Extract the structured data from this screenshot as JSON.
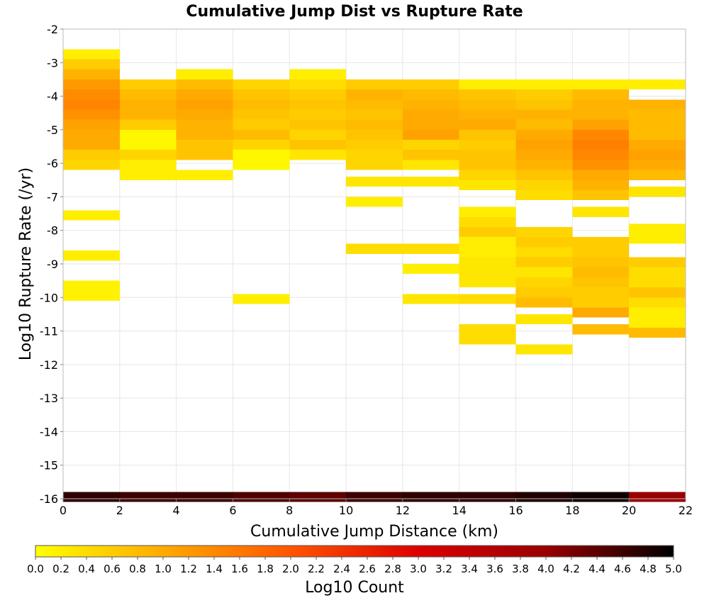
{
  "chart_data": {
    "type": "heatmap",
    "title": "Cumulative Jump Dist vs Rupture Rate",
    "xlabel": "Cumulative Jump Distance (km)",
    "ylabel": "Log10 Rupture Rate (/yr)",
    "xlim": [
      0,
      22
    ],
    "ylim": [
      -16,
      -2
    ],
    "x_ticks": [
      "0",
      "2",
      "4",
      "6",
      "8",
      "10",
      "12",
      "14",
      "16",
      "18",
      "20",
      "22"
    ],
    "y_ticks": [
      "-2",
      "-3",
      "-4",
      "-5",
      "-6",
      "-7",
      "-8",
      "-9",
      "-10",
      "-11",
      "-12",
      "-13",
      "-14",
      "-15",
      "-16"
    ],
    "x_bin_width": 2,
    "y_bin_height": 0.3,
    "colorbar": {
      "label": "Log10 Count",
      "min": 0.0,
      "max": 5.0,
      "ticks": [
        "0.0",
        "0.2",
        "0.4",
        "0.6",
        "0.8",
        "1.0",
        "1.2",
        "1.4",
        "1.6",
        "1.8",
        "2.0",
        "2.2",
        "2.4",
        "2.6",
        "2.8",
        "3.0",
        "3.2",
        "3.4",
        "3.6",
        "3.8",
        "4.0",
        "4.2",
        "4.4",
        "4.6",
        "4.8",
        "5.0"
      ],
      "colors": [
        "#ffff00",
        "#ffaa00",
        "#ff5500",
        "#dd0000",
        "#990000",
        "#000000"
      ]
    },
    "cells": [
      {
        "x": 0,
        "y": -2.75,
        "v": 0.2
      },
      {
        "x": 0,
        "y": -3.05,
        "v": 0.6
      },
      {
        "x": 0,
        "y": -3.35,
        "v": 0.9
      },
      {
        "x": 0,
        "y": -3.65,
        "v": 1.2
      },
      {
        "x": 0,
        "y": -3.95,
        "v": 1.35
      },
      {
        "x": 0,
        "y": -4.25,
        "v": 1.45
      },
      {
        "x": 0,
        "y": -4.55,
        "v": 1.3
      },
      {
        "x": 0,
        "y": -4.85,
        "v": 1.1
      },
      {
        "x": 0,
        "y": -5.15,
        "v": 1.0
      },
      {
        "x": 0,
        "y": -5.45,
        "v": 1.0
      },
      {
        "x": 0,
        "y": -5.75,
        "v": 0.6
      },
      {
        "x": 0,
        "y": -6.05,
        "v": 0.5
      },
      {
        "x": 0,
        "y": -7.55,
        "v": 0.2
      },
      {
        "x": 0,
        "y": -8.75,
        "v": 0.2
      },
      {
        "x": 0,
        "y": -9.65,
        "v": 0.15
      },
      {
        "x": 0,
        "y": -9.95,
        "v": 0.15
      },
      {
        "x": 0,
        "y": -15.95,
        "v": 4.7
      },
      {
        "x": 2,
        "y": -3.65,
        "v": 0.6
      },
      {
        "x": 2,
        "y": -3.95,
        "v": 0.8
      },
      {
        "x": 2,
        "y": -4.25,
        "v": 0.9
      },
      {
        "x": 2,
        "y": -4.55,
        "v": 0.9
      },
      {
        "x": 2,
        "y": -4.85,
        "v": 0.6
      },
      {
        "x": 2,
        "y": -5.15,
        "v": 0.1
      },
      {
        "x": 2,
        "y": -5.45,
        "v": 0.1
      },
      {
        "x": 2,
        "y": -5.75,
        "v": 0.5
      },
      {
        "x": 2,
        "y": -6.05,
        "v": 0.2
      },
      {
        "x": 2,
        "y": -6.35,
        "v": 0.2
      },
      {
        "x": 2,
        "y": -15.95,
        "v": 4.6
      },
      {
        "x": 4,
        "y": -3.35,
        "v": 0.2
      },
      {
        "x": 4,
        "y": -3.65,
        "v": 0.8
      },
      {
        "x": 4,
        "y": -3.95,
        "v": 1.0
      },
      {
        "x": 4,
        "y": -4.25,
        "v": 1.1
      },
      {
        "x": 4,
        "y": -4.55,
        "v": 1.0
      },
      {
        "x": 4,
        "y": -4.85,
        "v": 0.9
      },
      {
        "x": 4,
        "y": -5.15,
        "v": 0.9
      },
      {
        "x": 4,
        "y": -5.45,
        "v": 0.7
      },
      {
        "x": 4,
        "y": -5.75,
        "v": 0.7
      },
      {
        "x": 4,
        "y": -6.35,
        "v": 0.2
      },
      {
        "x": 4,
        "y": -15.95,
        "v": 4.6
      },
      {
        "x": 6,
        "y": -3.65,
        "v": 0.5
      },
      {
        "x": 6,
        "y": -3.95,
        "v": 0.7
      },
      {
        "x": 6,
        "y": -4.25,
        "v": 0.8
      },
      {
        "x": 6,
        "y": -4.55,
        "v": 0.7
      },
      {
        "x": 6,
        "y": -4.85,
        "v": 0.6
      },
      {
        "x": 6,
        "y": -5.15,
        "v": 0.8
      },
      {
        "x": 6,
        "y": -5.45,
        "v": 0.5
      },
      {
        "x": 6,
        "y": -5.75,
        "v": 0.1
      },
      {
        "x": 6,
        "y": -6.05,
        "v": 0.1
      },
      {
        "x": 6,
        "y": -10.05,
        "v": 0.2
      },
      {
        "x": 6,
        "y": -15.95,
        "v": 4.5
      },
      {
        "x": 8,
        "y": -3.35,
        "v": 0.2
      },
      {
        "x": 8,
        "y": -3.65,
        "v": 0.4
      },
      {
        "x": 8,
        "y": -3.95,
        "v": 0.6
      },
      {
        "x": 8,
        "y": -4.25,
        "v": 0.7
      },
      {
        "x": 8,
        "y": -4.55,
        "v": 0.6
      },
      {
        "x": 8,
        "y": -4.85,
        "v": 0.7
      },
      {
        "x": 8,
        "y": -5.15,
        "v": 0.5
      },
      {
        "x": 8,
        "y": -5.45,
        "v": 0.7
      },
      {
        "x": 8,
        "y": -5.75,
        "v": 0.3
      },
      {
        "x": 8,
        "y": -15.95,
        "v": 4.4
      },
      {
        "x": 10,
        "y": -3.65,
        "v": 0.6
      },
      {
        "x": 10,
        "y": -3.95,
        "v": 0.9
      },
      {
        "x": 10,
        "y": -4.25,
        "v": 0.8
      },
      {
        "x": 10,
        "y": -4.55,
        "v": 0.7
      },
      {
        "x": 10,
        "y": -4.85,
        "v": 0.8
      },
      {
        "x": 10,
        "y": -5.15,
        "v": 0.7
      },
      {
        "x": 10,
        "y": -5.45,
        "v": 0.6
      },
      {
        "x": 10,
        "y": -5.75,
        "v": 0.5
      },
      {
        "x": 10,
        "y": -6.05,
        "v": 0.5
      },
      {
        "x": 10,
        "y": -6.55,
        "v": 0.3
      },
      {
        "x": 10,
        "y": -7.15,
        "v": 0.2
      },
      {
        "x": 10,
        "y": -8.55,
        "v": 0.4
      },
      {
        "x": 10,
        "y": -15.95,
        "v": 4.6
      },
      {
        "x": 12,
        "y": -3.65,
        "v": 0.6
      },
      {
        "x": 12,
        "y": -3.95,
        "v": 0.8
      },
      {
        "x": 12,
        "y": -4.25,
        "v": 0.9
      },
      {
        "x": 12,
        "y": -4.55,
        "v": 1.0
      },
      {
        "x": 12,
        "y": -4.85,
        "v": 1.0
      },
      {
        "x": 12,
        "y": -5.15,
        "v": 1.1
      },
      {
        "x": 12,
        "y": -5.45,
        "v": 0.5
      },
      {
        "x": 12,
        "y": -5.75,
        "v": 0.7
      },
      {
        "x": 12,
        "y": -6.05,
        "v": 0.3
      },
      {
        "x": 12,
        "y": -6.55,
        "v": 0.3
      },
      {
        "x": 12,
        "y": -8.55,
        "v": 0.4
      },
      {
        "x": 12,
        "y": -9.15,
        "v": 0.2
      },
      {
        "x": 12,
        "y": -10.05,
        "v": 0.3
      },
      {
        "x": 12,
        "y": -15.95,
        "v": 4.7
      },
      {
        "x": 14,
        "y": -3.65,
        "v": 0.2
      },
      {
        "x": 14,
        "y": -3.95,
        "v": 0.7
      },
      {
        "x": 14,
        "y": -4.25,
        "v": 0.8
      },
      {
        "x": 14,
        "y": -4.55,
        "v": 0.9
      },
      {
        "x": 14,
        "y": -4.85,
        "v": 1.0
      },
      {
        "x": 14,
        "y": -5.15,
        "v": 0.7
      },
      {
        "x": 14,
        "y": -5.45,
        "v": 0.6
      },
      {
        "x": 14,
        "y": -5.75,
        "v": 0.7
      },
      {
        "x": 14,
        "y": -6.05,
        "v": 0.7
      },
      {
        "x": 14,
        "y": -6.35,
        "v": 0.5
      },
      {
        "x": 14,
        "y": -6.65,
        "v": 0.3
      },
      {
        "x": 14,
        "y": -7.45,
        "v": 0.2
      },
      {
        "x": 14,
        "y": -7.75,
        "v": 0.4
      },
      {
        "x": 14,
        "y": -8.05,
        "v": 0.6
      },
      {
        "x": 14,
        "y": -8.35,
        "v": 0.2
      },
      {
        "x": 14,
        "y": -8.65,
        "v": 0.2
      },
      {
        "x": 14,
        "y": -8.95,
        "v": 0.3
      },
      {
        "x": 14,
        "y": -9.25,
        "v": 0.3
      },
      {
        "x": 14,
        "y": -9.55,
        "v": 0.3
      },
      {
        "x": 14,
        "y": -10.05,
        "v": 0.4
      },
      {
        "x": 14,
        "y": -10.95,
        "v": 0.4
      },
      {
        "x": 14,
        "y": -11.25,
        "v": 0.4
      },
      {
        "x": 14,
        "y": -15.95,
        "v": 4.7
      },
      {
        "x": 16,
        "y": -3.65,
        "v": 0.2
      },
      {
        "x": 16,
        "y": -3.95,
        "v": 0.6
      },
      {
        "x": 16,
        "y": -4.25,
        "v": 0.7
      },
      {
        "x": 16,
        "y": -4.55,
        "v": 0.9
      },
      {
        "x": 16,
        "y": -4.85,
        "v": 0.8
      },
      {
        "x": 16,
        "y": -5.15,
        "v": 1.0
      },
      {
        "x": 16,
        "y": -5.45,
        "v": 1.1
      },
      {
        "x": 16,
        "y": -5.75,
        "v": 1.0
      },
      {
        "x": 16,
        "y": -6.05,
        "v": 0.9
      },
      {
        "x": 16,
        "y": -6.35,
        "v": 0.7
      },
      {
        "x": 16,
        "y": -6.65,
        "v": 0.5
      },
      {
        "x": 16,
        "y": -6.95,
        "v": 0.4
      },
      {
        "x": 16,
        "y": -8.05,
        "v": 0.5
      },
      {
        "x": 16,
        "y": -8.35,
        "v": 0.6
      },
      {
        "x": 16,
        "y": -8.65,
        "v": 0.4
      },
      {
        "x": 16,
        "y": -8.95,
        "v": 0.6
      },
      {
        "x": 16,
        "y": -9.25,
        "v": 0.3
      },
      {
        "x": 16,
        "y": -9.55,
        "v": 0.5
      },
      {
        "x": 16,
        "y": -9.85,
        "v": 0.6
      },
      {
        "x": 16,
        "y": -10.15,
        "v": 0.8
      },
      {
        "x": 16,
        "y": -10.65,
        "v": 0.3
      },
      {
        "x": 16,
        "y": -11.55,
        "v": 0.3
      },
      {
        "x": 16,
        "y": -15.95,
        "v": 4.8
      },
      {
        "x": 18,
        "y": -3.65,
        "v": 0.2
      },
      {
        "x": 18,
        "y": -3.95,
        "v": 0.8
      },
      {
        "x": 18,
        "y": -4.25,
        "v": 0.9
      },
      {
        "x": 18,
        "y": -4.55,
        "v": 0.9
      },
      {
        "x": 18,
        "y": -4.85,
        "v": 1.1
      },
      {
        "x": 18,
        "y": -5.15,
        "v": 1.4
      },
      {
        "x": 18,
        "y": -5.45,
        "v": 1.5
      },
      {
        "x": 18,
        "y": -5.75,
        "v": 1.4
      },
      {
        "x": 18,
        "y": -6.05,
        "v": 1.3
      },
      {
        "x": 18,
        "y": -6.35,
        "v": 1.0
      },
      {
        "x": 18,
        "y": -6.65,
        "v": 0.9
      },
      {
        "x": 18,
        "y": -6.95,
        "v": 0.7
      },
      {
        "x": 18,
        "y": -7.45,
        "v": 0.3
      },
      {
        "x": 18,
        "y": -8.35,
        "v": 0.6
      },
      {
        "x": 18,
        "y": -8.65,
        "v": 0.6
      },
      {
        "x": 18,
        "y": -8.95,
        "v": 0.7
      },
      {
        "x": 18,
        "y": -9.25,
        "v": 0.8
      },
      {
        "x": 18,
        "y": -9.55,
        "v": 0.7
      },
      {
        "x": 18,
        "y": -9.85,
        "v": 0.6
      },
      {
        "x": 18,
        "y": -10.15,
        "v": 0.6
      },
      {
        "x": 18,
        "y": -10.45,
        "v": 1.0
      },
      {
        "x": 18,
        "y": -10.95,
        "v": 0.8
      },
      {
        "x": 18,
        "y": -15.95,
        "v": 4.9
      },
      {
        "x": 20,
        "y": -3.65,
        "v": 0.2
      },
      {
        "x": 20,
        "y": -4.25,
        "v": 0.9
      },
      {
        "x": 20,
        "y": -4.55,
        "v": 0.8
      },
      {
        "x": 20,
        "y": -4.85,
        "v": 0.8
      },
      {
        "x": 20,
        "y": -5.15,
        "v": 0.8
      },
      {
        "x": 20,
        "y": -5.45,
        "v": 1.0
      },
      {
        "x": 20,
        "y": -5.75,
        "v": 1.1
      },
      {
        "x": 20,
        "y": -6.05,
        "v": 1.0
      },
      {
        "x": 20,
        "y": -6.35,
        "v": 0.8
      },
      {
        "x": 20,
        "y": -6.85,
        "v": 0.3
      },
      {
        "x": 20,
        "y": -7.95,
        "v": 0.2
      },
      {
        "x": 20,
        "y": -8.25,
        "v": 0.2
      },
      {
        "x": 20,
        "y": -8.95,
        "v": 0.6
      },
      {
        "x": 20,
        "y": -9.25,
        "v": 0.4
      },
      {
        "x": 20,
        "y": -9.55,
        "v": 0.4
      },
      {
        "x": 20,
        "y": -9.85,
        "v": 0.7
      },
      {
        "x": 20,
        "y": -10.15,
        "v": 0.4
      },
      {
        "x": 20,
        "y": -10.45,
        "v": 0.2
      },
      {
        "x": 20,
        "y": -10.75,
        "v": 0.2
      },
      {
        "x": 20,
        "y": -11.05,
        "v": 0.8
      },
      {
        "x": 20,
        "y": -15.95,
        "v": 4.0
      }
    ]
  }
}
